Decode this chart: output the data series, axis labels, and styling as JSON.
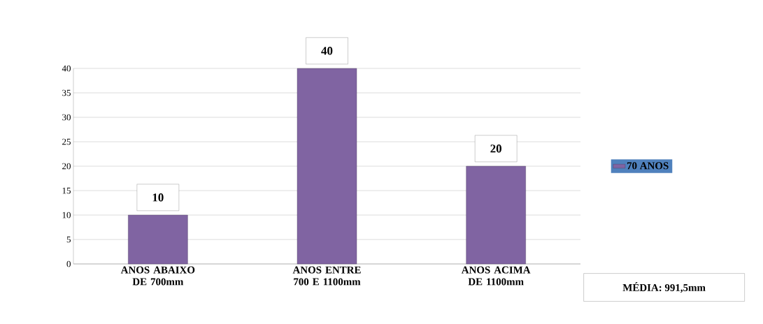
{
  "chart_data": {
    "type": "bar",
    "categories": [
      "ANOS ABAIXO DE 700mm",
      "ANOS ENTRE 700 E 1100mm",
      "ANOS ACIMA DE 1100mm"
    ],
    "series": [
      {
        "name": "70 ANOS",
        "color": "#8064a2",
        "values": [
          10,
          40,
          20
        ]
      }
    ],
    "ylim": [
      0,
      40
    ],
    "yticks": [
      0,
      5,
      10,
      15,
      20,
      25,
      30,
      35,
      40
    ],
    "grid": "y",
    "legend": "right",
    "data_labels": true,
    "annotations": [
      "MÉDIA: 991,5mm"
    ]
  }
}
